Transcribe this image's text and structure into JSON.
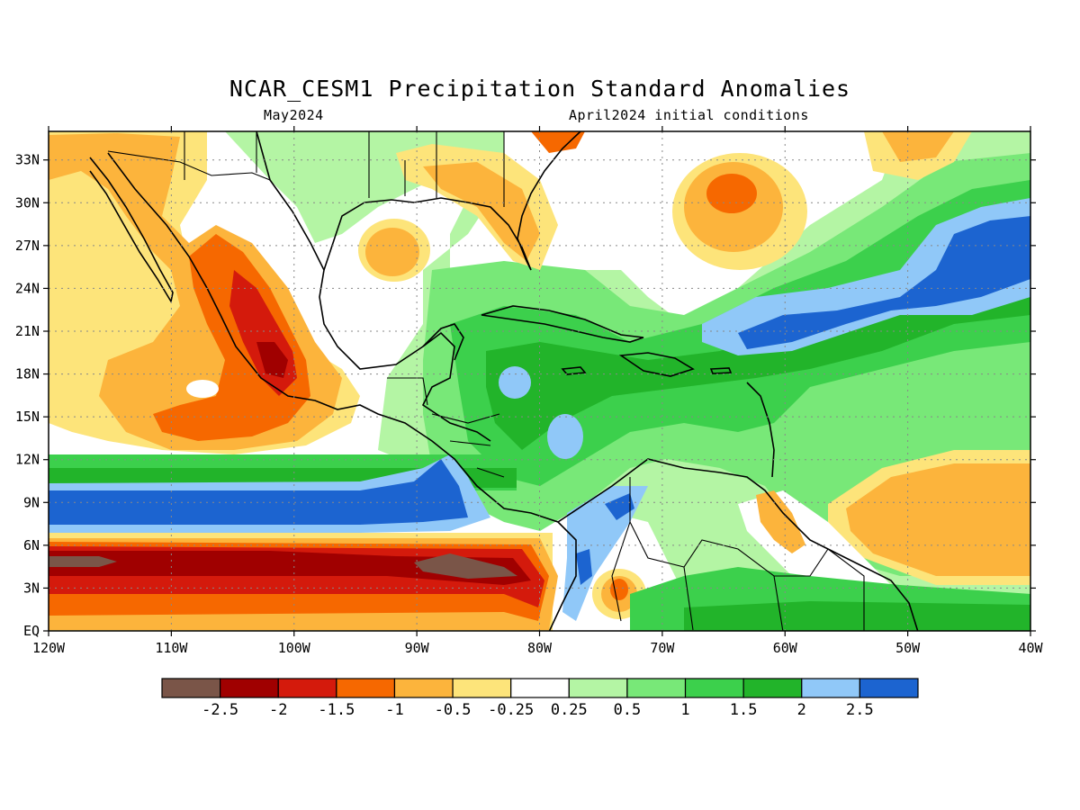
{
  "title": "NCAR_CESM1 Precipitation Standard Anomalies",
  "subtitle_left": "May2024",
  "subtitle_right": "April2024 initial conditions",
  "map": {
    "lat_labels": [
      "33N",
      "30N",
      "27N",
      "24N",
      "21N",
      "18N",
      "15N",
      "12N",
      "9N",
      "6N",
      "3N",
      "EQ"
    ],
    "lon_labels": [
      "120W",
      "110W",
      "100W",
      "90W",
      "80W",
      "70W",
      "60W",
      "50W",
      "40W"
    ],
    "lat_values": [
      33,
      30,
      27,
      24,
      21,
      18,
      15,
      12,
      9,
      6,
      3,
      0
    ],
    "lon_values": [
      -120,
      -110,
      -100,
      -90,
      -80,
      -70,
      -60,
      -50,
      -40
    ],
    "lon_range": [
      -120,
      -40
    ],
    "lat_range": [
      0,
      35
    ],
    "grid": "dotted"
  },
  "legend": {
    "colors": [
      "#7a5548",
      "#a00000",
      "#d41a0c",
      "#f66800",
      "#fcb43c",
      "#fde47a",
      "#ffffff",
      "#b4f5a4",
      "#78e878",
      "#3cd04c",
      "#22b42a",
      "#90c8f8",
      "#1c64d0"
    ],
    "labels": [
      "-2.5",
      "-2",
      "-1.5",
      "-1",
      "-0.5",
      "-0.25",
      "0.25",
      "0.5",
      "1",
      "1.5",
      "2",
      "2.5"
    ]
  },
  "palette": {
    "brown": "#7a5548",
    "darkred": "#a00000",
    "red": "#d41a0c",
    "orange": "#f66800",
    "lightorange": "#fcb43c",
    "yellow": "#fde47a",
    "white": "#ffffff",
    "palegreen": "#b4f5a4",
    "lightgreen": "#78e878",
    "green": "#3cd04c",
    "darkgreen": "#22b42a",
    "lightblue": "#90c8f8",
    "blue": "#1c64d0"
  }
}
